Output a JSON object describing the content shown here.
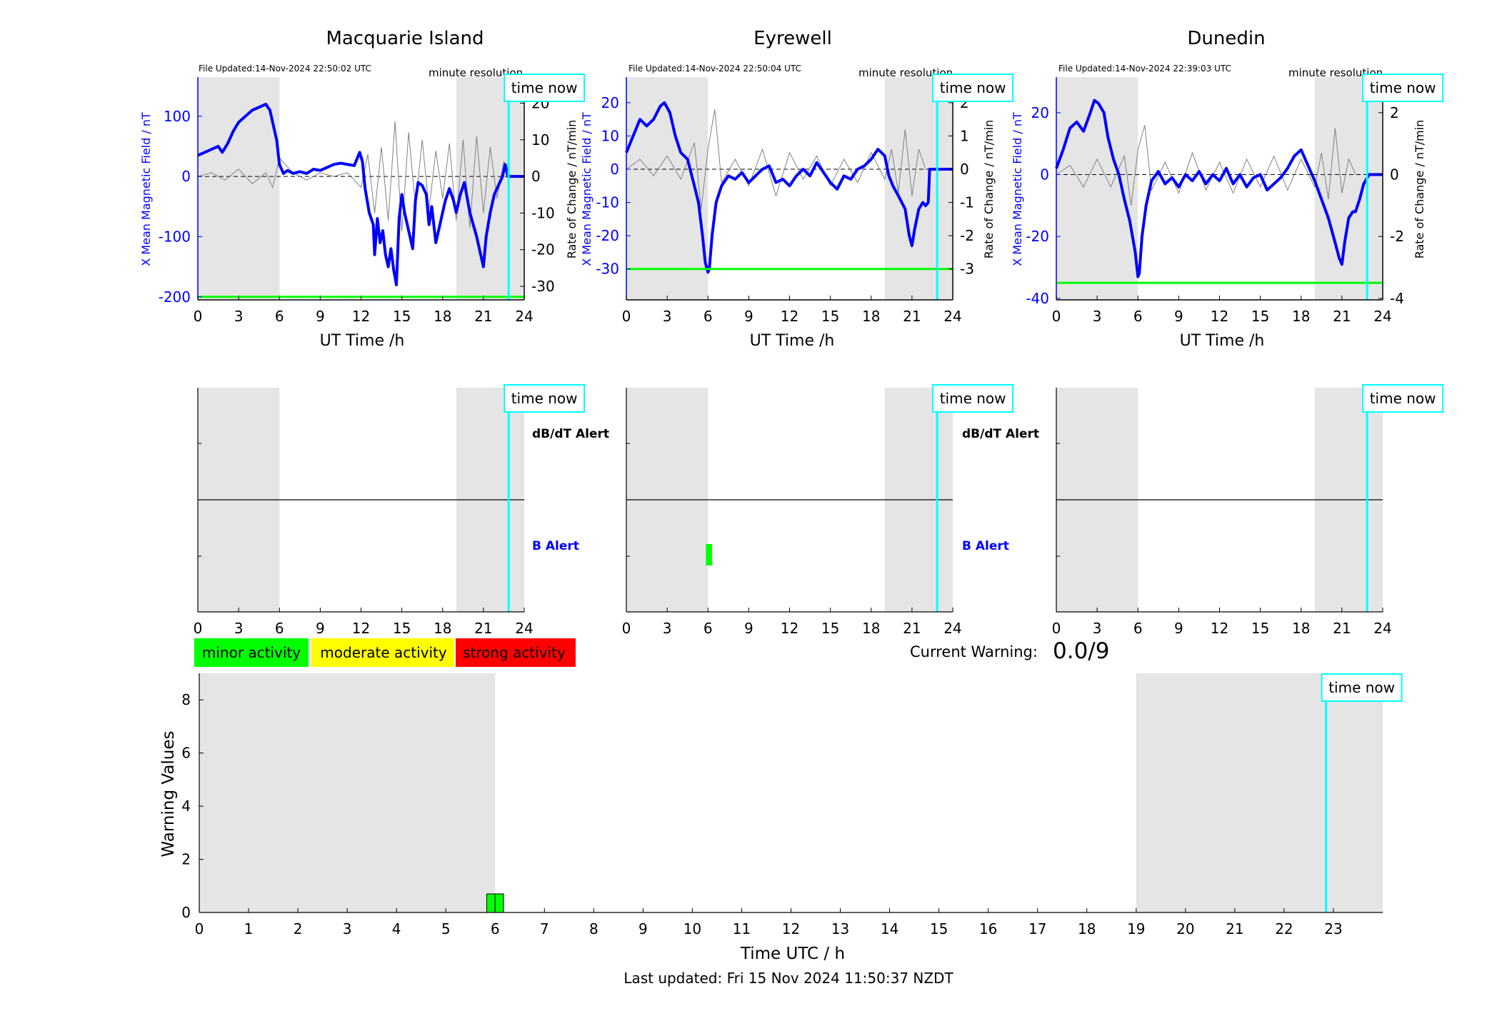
{
  "page": {
    "current_warning_label": "Current Warning:",
    "current_warning_value": "0.0/9",
    "last_updated": "Last updated: Fri 15 Nov 2024 11:50:37 NZDT"
  },
  "legend": {
    "minor": {
      "label": "minor activity",
      "color": "#00ff00"
    },
    "moderate": {
      "label": "moderate activity",
      "color": "#ffff00"
    },
    "strong": {
      "label": "strong activity",
      "color": "#ff0000"
    }
  },
  "colors": {
    "field_line": "#0000ff",
    "rate_line": "#808080",
    "threshold": "#00ff00",
    "time_now": "#00ffff",
    "night_shade": "#e5e5e5",
    "alert_b": "#0000ff",
    "alert_dbdt": "#000000"
  },
  "chart_data": [
    {
      "type": "line",
      "title": "Macquarie Island",
      "file_updated": "File Updated:14-Nov-2024 22:50:02 UTC",
      "resolution_label": "minute resolution",
      "time_now_label": "time now",
      "xlabel": "UT Time /h",
      "ylabel": "X Mean Magnetic Field / nT",
      "y2label": "Rate of Change / nT/min",
      "xlim": [
        0,
        24
      ],
      "xticks": [
        0,
        3,
        6,
        9,
        12,
        15,
        18,
        21,
        24
      ],
      "ylim": [
        -205,
        165
      ],
      "yticks": [
        -200,
        -100,
        0,
        100
      ],
      "y2lim": [
        -33.7,
        27.1
      ],
      "y2ticks": [
        -30,
        -20,
        -10,
        0,
        10,
        20
      ],
      "shaded_hours": [
        [
          0,
          6
        ],
        [
          19,
          24
        ]
      ],
      "time_now_h": 22.85,
      "threshold": -200,
      "series": [
        {
          "role": "field",
          "x": [
            0,
            0.5,
            1,
            1.5,
            1.8,
            2.2,
            2.6,
            3,
            3.5,
            4,
            4.5,
            5,
            5.3,
            5.5,
            5.8,
            6,
            6.3,
            6.6,
            7,
            7.5,
            8,
            8.5,
            9,
            9.5,
            10,
            10.5,
            11,
            11.5,
            11.9,
            12.1,
            12.3,
            12.6,
            12.9,
            13,
            13.2,
            13.4,
            13.6,
            13.8,
            14,
            14.2,
            14.4,
            14.6,
            14.8,
            15,
            15.2,
            15.5,
            15.8,
            16,
            16.2,
            16.5,
            16.8,
            17,
            17.2,
            17.5,
            17.8,
            18,
            18.2,
            18.5,
            18.8,
            19,
            19.3,
            19.6,
            20,
            20.5,
            20.8,
            21,
            21.2,
            21.5,
            21.8,
            22,
            22.2,
            22.4,
            22.6,
            22.8,
            23,
            23.5,
            24
          ],
          "y": [
            35,
            40,
            45,
            50,
            40,
            55,
            75,
            90,
            100,
            110,
            115,
            120,
            110,
            90,
            60,
            20,
            5,
            10,
            5,
            8,
            5,
            12,
            10,
            15,
            20,
            22,
            20,
            18,
            40,
            25,
            -20,
            -60,
            -80,
            -130,
            -70,
            -110,
            -90,
            -130,
            -150,
            -120,
            -155,
            -180,
            -70,
            -30,
            -60,
            -90,
            -120,
            -40,
            -10,
            -15,
            -30,
            -80,
            -50,
            -110,
            -80,
            -60,
            -40,
            -20,
            -40,
            -60,
            -30,
            -10,
            -60,
            -100,
            -130,
            -150,
            -100,
            -60,
            -30,
            -20,
            -10,
            0,
            20,
            0,
            0,
            0,
            0
          ]
        },
        {
          "role": "rate",
          "x": [
            0,
            1,
            2,
            3,
            4,
            5,
            5.5,
            6,
            7,
            8,
            9,
            10,
            11,
            12,
            12.5,
            13,
            13.5,
            14,
            14.5,
            15,
            15.5,
            16,
            16.5,
            17,
            17.5,
            18,
            18.5,
            19,
            19.5,
            20,
            20.5,
            21,
            21.5,
            22,
            22.5,
            23
          ],
          "y": [
            0,
            1,
            -1,
            2,
            -2,
            1,
            -3,
            5,
            1,
            -1,
            1,
            0,
            1,
            -3,
            6,
            -10,
            8,
            -12,
            15,
            -15,
            12,
            -8,
            10,
            -9,
            7,
            -6,
            9,
            -12,
            10,
            -14,
            11,
            -10,
            8,
            -6,
            4,
            0
          ]
        }
      ]
    },
    {
      "type": "line",
      "title": "Eyrewell",
      "file_updated": "File Updated:14-Nov-2024 22:50:04 UTC",
      "resolution_label": "minute resolution",
      "time_now_label": "time now",
      "xlabel": "UT Time /h",
      "ylabel": "X Mean Magnetic Field / nT",
      "y2label": "Rate of Change / nT/min",
      "xlim": [
        0,
        24
      ],
      "xticks": [
        0,
        3,
        6,
        9,
        12,
        15,
        18,
        21,
        24
      ],
      "ylim": [
        -39.3,
        27.7
      ],
      "yticks": [
        -30,
        -20,
        -10,
        0,
        10,
        20
      ],
      "y2lim": [
        -3.93,
        2.77
      ],
      "y2ticks": [
        -3,
        -2,
        -1,
        0,
        1,
        2
      ],
      "shaded_hours": [
        [
          0,
          6
        ],
        [
          19,
          24
        ]
      ],
      "time_now_h": 22.85,
      "threshold": -30,
      "series": [
        {
          "role": "field",
          "x": [
            0,
            0.5,
            1,
            1.5,
            2,
            2.5,
            2.8,
            3.2,
            3.6,
            4,
            4.5,
            5,
            5.3,
            5.6,
            5.8,
            6,
            6.1,
            6.3,
            6.6,
            7,
            7.5,
            8,
            8.5,
            9,
            9.5,
            10,
            10.5,
            11,
            11.5,
            12,
            12.5,
            13,
            13.5,
            14,
            14.5,
            15,
            15.5,
            16,
            16.5,
            17,
            17.5,
            18,
            18.5,
            19,
            19.3,
            19.6,
            20,
            20.5,
            20.8,
            21,
            21.2,
            21.5,
            21.8,
            22,
            22.2,
            22.3,
            22.5,
            22.8,
            23,
            23.5,
            24
          ],
          "y": [
            5,
            10,
            15,
            13,
            15,
            19,
            20,
            17,
            10,
            5,
            3,
            -5,
            -10,
            -20,
            -28,
            -31,
            -30,
            -20,
            -10,
            -5,
            -2,
            -3,
            -1,
            -4,
            -2,
            0,
            1,
            -4,
            -3,
            -5,
            -2,
            0,
            -2,
            2,
            -1,
            -4,
            -6,
            -2,
            -3,
            0,
            1,
            3,
            6,
            4,
            -2,
            -5,
            -8,
            -12,
            -20,
            -23,
            -18,
            -12,
            -10,
            -11,
            -10,
            0,
            0,
            0,
            0,
            0,
            0
          ]
        },
        {
          "role": "rate",
          "x": [
            0,
            1,
            2,
            3,
            4,
            5,
            5.5,
            6,
            6.5,
            7,
            8,
            9,
            10,
            11,
            12,
            13,
            14,
            15,
            16,
            17,
            18,
            19,
            19.5,
            20,
            20.5,
            21,
            21.5,
            22
          ],
          "y": [
            0,
            0.3,
            -0.2,
            0.4,
            -0.3,
            0.8,
            -1.2,
            0.6,
            1.8,
            -0.4,
            0.3,
            -0.5,
            0.6,
            -0.8,
            0.5,
            -0.3,
            0.4,
            -0.5,
            0.3,
            -0.4,
            0.5,
            -0.3,
            0.6,
            -0.7,
            1.2,
            -0.8,
            0.6,
            0
          ]
        }
      ]
    },
    {
      "type": "line",
      "title": "Dunedin",
      "file_updated": "File Updated:14-Nov-2024 22:39:03 UTC",
      "resolution_label": "minute resolution",
      "time_now_label": "time now",
      "xlabel": "UT Time /h",
      "ylabel": "X Mean Magnetic Field / nT",
      "y2label": "Rate of Change / nT/min",
      "xlim": [
        0,
        24
      ],
      "xticks": [
        0,
        3,
        6,
        9,
        12,
        15,
        18,
        21,
        24
      ],
      "ylim": [
        -40.5,
        31.5
      ],
      "yticks": [
        -40,
        -20,
        0,
        20
      ],
      "y2lim": [
        -4.05,
        3.15
      ],
      "y2ticks": [
        -4,
        -2,
        0,
        2
      ],
      "shaded_hours": [
        [
          0,
          6
        ],
        [
          19,
          24
        ]
      ],
      "time_now_h": 22.85,
      "threshold": -35,
      "series": [
        {
          "role": "field",
          "x": [
            0,
            0.5,
            1,
            1.5,
            2,
            2.5,
            2.8,
            3.1,
            3.5,
            3.8,
            4.2,
            4.6,
            5,
            5.4,
            5.8,
            6,
            6.1,
            6.3,
            6.6,
            7,
            7.5,
            8,
            8.5,
            9,
            9.5,
            10,
            10.5,
            11,
            11.5,
            12,
            12.5,
            13,
            13.5,
            14,
            14.5,
            15,
            15.5,
            16,
            16.5,
            17,
            17.5,
            18,
            18.5,
            19,
            19.5,
            20,
            20.5,
            20.8,
            21,
            21.2,
            21.5,
            21.8,
            22,
            22.3,
            22.6,
            23,
            23.5,
            24
          ],
          "y": [
            2,
            8,
            15,
            17,
            14,
            20,
            24,
            23,
            20,
            12,
            5,
            0,
            -8,
            -15,
            -25,
            -33,
            -32,
            -20,
            -10,
            -2,
            1,
            -3,
            -1,
            -4,
            0,
            -2,
            1,
            -3,
            0,
            -2,
            2,
            -3,
            0,
            -4,
            -1,
            0,
            -5,
            -3,
            -1,
            2,
            6,
            8,
            3,
            -2,
            -8,
            -14,
            -22,
            -27,
            -29,
            -22,
            -14,
            -12,
            -12,
            -8,
            -3,
            0,
            0,
            0
          ]
        },
        {
          "role": "rate",
          "x": [
            0,
            1,
            2,
            3,
            4,
            5,
            5.5,
            6,
            6.5,
            7,
            8,
            9,
            10,
            11,
            12,
            13,
            14,
            15,
            16,
            17,
            18,
            19,
            19.5,
            20,
            20.5,
            21,
            21.5,
            22
          ],
          "y": [
            0,
            0.3,
            -0.4,
            0.5,
            -0.4,
            0.6,
            -1.0,
            0.8,
            1.6,
            -0.5,
            0.4,
            -0.6,
            0.7,
            -0.5,
            0.4,
            -0.6,
            0.5,
            -0.4,
            0.6,
            -0.5,
            0.5,
            -0.4,
            0.7,
            -0.8,
            1.5,
            -0.6,
            0.5,
            0
          ]
        }
      ]
    },
    {
      "type": "bar",
      "title": "",
      "alert_labels": {
        "dbdt": "dB/dT Alert",
        "b": "B Alert"
      },
      "time_now_label": "time now",
      "xlim": [
        0,
        24
      ],
      "xticks": [
        0,
        3,
        6,
        9,
        12,
        15,
        18,
        21,
        24
      ],
      "shaded_hours": [
        [
          0,
          6
        ],
        [
          19,
          24
        ]
      ],
      "time_now_h": 22.85,
      "stations": [
        "Macquarie Island",
        "Eyrewell",
        "Dunedin"
      ],
      "alerts": [
        {
          "station": "Eyrewell",
          "type": "B Alert",
          "start_h": 5.85,
          "end_h": 6.3,
          "level": "minor"
        }
      ]
    },
    {
      "type": "bar",
      "title": "",
      "xlabel": "Time UTC / h",
      "ylabel": "Warning Values",
      "time_now_label": "time now",
      "xlim": [
        0,
        24
      ],
      "xticks": [
        0,
        1,
        2,
        3,
        4,
        5,
        6,
        7,
        8,
        9,
        10,
        11,
        12,
        13,
        14,
        15,
        16,
        17,
        18,
        19,
        20,
        21,
        22,
        23
      ],
      "ylim": [
        0,
        9
      ],
      "yticks": [
        0,
        2,
        4,
        6,
        8
      ],
      "shaded_hours": [
        [
          0,
          6
        ],
        [
          19,
          24
        ]
      ],
      "time_now_h": 22.85,
      "bars": [
        {
          "start_h": 5.83,
          "end_h": 6.0,
          "value": 0.7,
          "level": "minor"
        },
        {
          "start_h": 6.0,
          "end_h": 6.17,
          "value": 0.7,
          "level": "minor"
        }
      ]
    }
  ]
}
